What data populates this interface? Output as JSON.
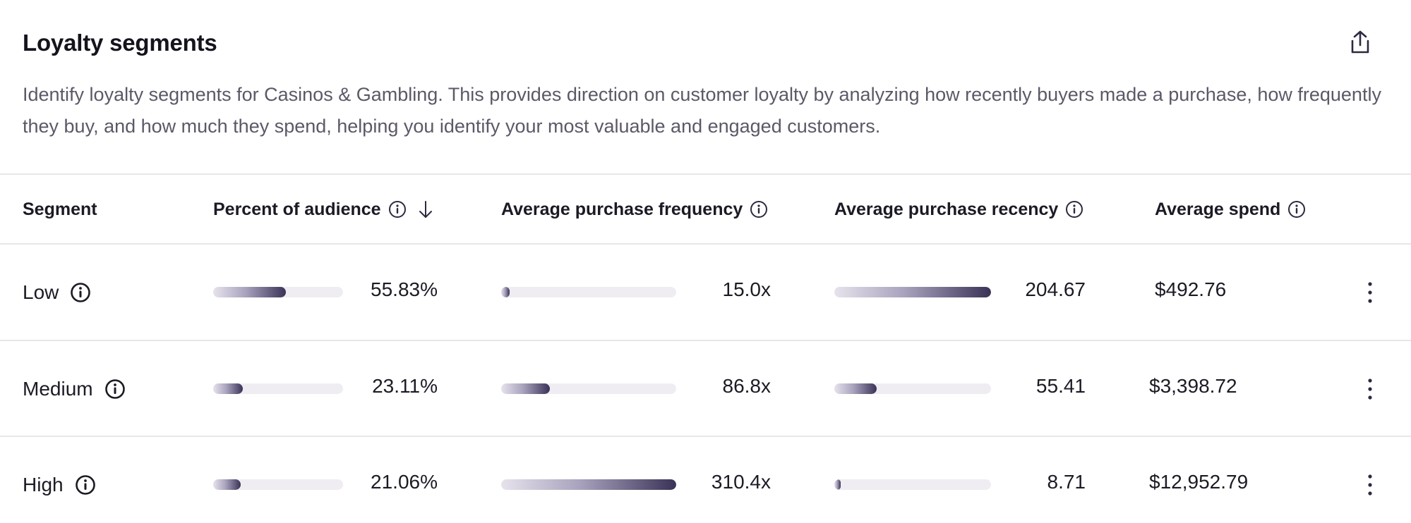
{
  "header": {
    "title": "Loyalty segments",
    "share_icon": "share-icon",
    "description": "Identify loyalty segments for Casinos & Gambling. This provides direction on customer loyalty by analyzing how recently buyers made a purchase, how frequently they buy, and how much they spend, helping you identify your most valuable and engaged customers."
  },
  "table": {
    "columns": {
      "segment": "Segment",
      "percent": "Percent of audience",
      "frequency": "Average purchase frequency",
      "recency": "Average purchase recency",
      "spend": "Average spend"
    },
    "sort": {
      "column": "percent",
      "direction": "descending",
      "icon": "arrow-down-icon"
    },
    "rows": [
      {
        "segment": "Low",
        "percent": "55.83%",
        "percent_fill": 0.56,
        "frequency": "15.0x",
        "frequency_fill": 0.05,
        "recency": "204.67",
        "recency_fill": 1.0,
        "spend": "$492.76"
      },
      {
        "segment": "Medium",
        "percent": "23.11%",
        "percent_fill": 0.23,
        "frequency": "86.8x",
        "frequency_fill": 0.28,
        "recency": "55.41",
        "recency_fill": 0.27,
        "spend": "$3,398.72"
      },
      {
        "segment": "High",
        "percent": "21.06%",
        "percent_fill": 0.21,
        "frequency": "310.4x",
        "frequency_fill": 1.0,
        "recency": "8.71",
        "recency_fill": 0.04,
        "spend": "$12,952.79"
      }
    ]
  },
  "colors": {
    "bar_dark": "#3a3357",
    "bar_track": "#efedf2",
    "divider": "#e7e6ea",
    "text_muted": "#5d5867"
  }
}
